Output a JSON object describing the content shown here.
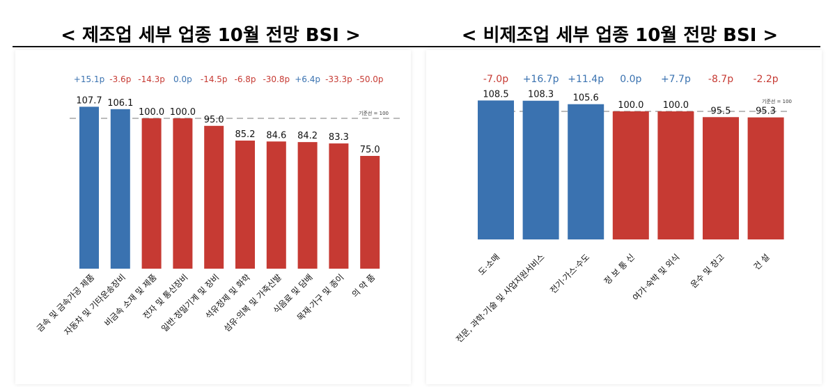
{
  "titles": {
    "left": "< 제조업 세부 업종 10월 전망 BSI >",
    "right": "< 비제조업 세부 업종 10월 전망 BSI >"
  },
  "colors": {
    "positive": "#3A72B0",
    "negative": "#C63A33",
    "baseline": "#BBBBBB",
    "value_text": "#111111"
  },
  "chart_data": [
    {
      "type": "bar",
      "title": "< 제조업 세부 업종 10월 전망 BSI >",
      "categories": [
        "금속 및 금속가공 제품",
        "자동차 및 기타운송장비",
        "비금속 소재 및 제품",
        "전자 및 통신장비",
        "일반·정밀기계 및 장비",
        "석유정제 및 화학",
        "섬유·의복 및 가죽신발",
        "식음료 및 담배",
        "목재·가구 및 종이",
        "의 약 품"
      ],
      "values": [
        107.7,
        106.1,
        100.0,
        100.0,
        95.0,
        85.2,
        84.6,
        84.2,
        83.3,
        75.0
      ],
      "value_labels": [
        "107.7",
        "106.1",
        "100.0",
        "100.0",
        "95.0",
        "85.2",
        "84.6",
        "84.2",
        "83.3",
        "75.0"
      ],
      "changes": [
        "+15.1p",
        "-3.6p",
        "-14.3p",
        "0.0p",
        "-14.5p",
        "-6.8p",
        "-30.8p",
        "+6.4p",
        "-33.3p",
        "-50.0p"
      ],
      "baseline": 100,
      "baseline_label": "기준선 = 100",
      "ylim": [
        0,
        110
      ],
      "grid": false,
      "legend": "none"
    },
    {
      "type": "bar",
      "title": "< 비제조업 세부 업종 10월 전망 BSI >",
      "categories": [
        "도·소매",
        "전문, 과학·기술 및 사업지원서비스",
        "전기·가스·수도",
        "정 보 통 신",
        "여가·숙박 및 외식",
        "운수 및 창고",
        "건 설"
      ],
      "values": [
        108.5,
        108.3,
        105.6,
        100.0,
        100.0,
        95.5,
        95.3
      ],
      "value_labels": [
        "108.5",
        "108.3",
        "105.6",
        "100.0",
        "100.0",
        "95.5",
        "95.3"
      ],
      "changes": [
        "-7.0p",
        "+16.7p",
        "+11.4p",
        "0.0p",
        "+7.7p",
        "-8.7p",
        "-2.2p"
      ],
      "baseline": 100,
      "baseline_label": "기준선 = 100",
      "ylim": [
        0,
        110
      ],
      "grid": false,
      "legend": "none"
    }
  ]
}
